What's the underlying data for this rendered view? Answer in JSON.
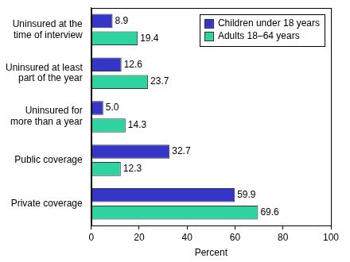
{
  "chart_data": {
    "type": "bar",
    "orientation": "horizontal",
    "categories": [
      [
        "Uninsured at the",
        "time of interview"
      ],
      [
        "Uninsured at least",
        "part of the year"
      ],
      [
        "Uninsured for",
        "more than a year"
      ],
      [
        "Public coverage"
      ],
      [
        "Private coverage"
      ]
    ],
    "series": [
      {
        "name": "Children under 18 years",
        "color": "#3535c8",
        "values": [
          8.9,
          12.6,
          5.0,
          32.7,
          59.9
        ],
        "value_labels": [
          "8.9",
          "12.6",
          "5.0",
          "32.7",
          "59.9"
        ]
      },
      {
        "name": "Adults 18–64 years",
        "color": "#2ed39f",
        "values": [
          19.4,
          23.7,
          14.3,
          12.3,
          69.6
        ],
        "value_labels": [
          "19.4",
          "23.7",
          "14.3",
          "12.3",
          "69.6"
        ]
      }
    ],
    "x_label": "Percent",
    "xlim": [
      0,
      100
    ],
    "xticks": [
      0,
      20,
      40,
      60,
      80,
      100
    ],
    "grid": false,
    "legend": "upper right",
    "data_labels": true
  }
}
